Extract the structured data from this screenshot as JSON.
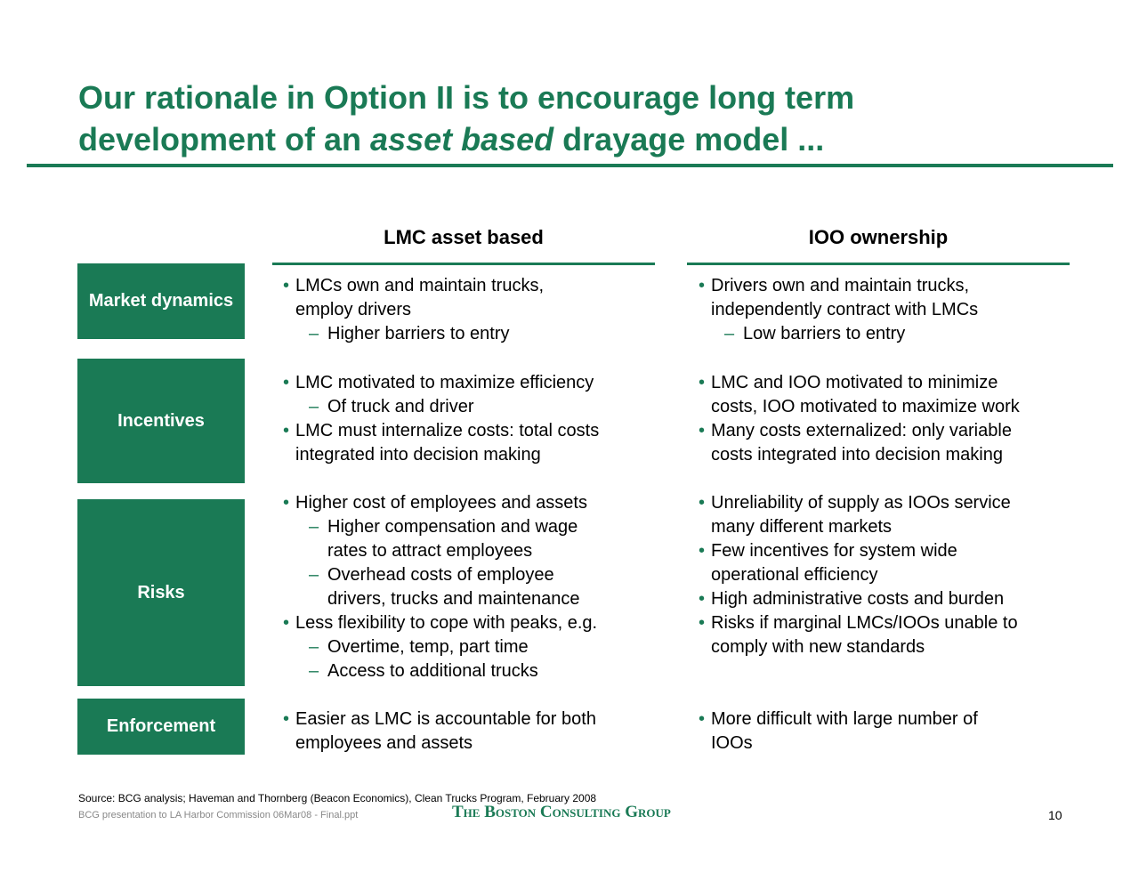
{
  "header": {
    "title": {
      "before": "Our rationale in Option II is to encourage long term development of an ",
      "emphasis": "asset based",
      "after": " drayage model ..."
    }
  },
  "columns": [
    "LMC asset based",
    "IOO ownership"
  ],
  "rows": [
    {
      "label": "Market dynamics",
      "cells": [
        [
          {
            "lines": [
              "LMCs own and maintain trucks,",
              "employ drivers"
            ],
            "subs": [
              {
                "lines": [
                  "Higher barriers to entry"
                ]
              }
            ]
          }
        ],
        [
          {
            "lines": [
              "Drivers own and maintain trucks,",
              "independently contract with LMCs"
            ],
            "subs": [
              {
                "lines": [
                  "Low barriers to entry"
                ]
              }
            ]
          }
        ]
      ]
    },
    {
      "label": "Incentives",
      "cells": [
        [
          {
            "lines": [
              "LMC motivated to maximize efficiency"
            ],
            "subs": [
              {
                "lines": [
                  "Of truck and driver"
                ]
              }
            ]
          },
          {
            "lines": [
              "LMC must internalize costs: total costs",
              "integrated into decision making"
            ]
          }
        ],
        [
          {
            "lines": [
              "LMC and IOO motivated to minimize",
              "costs, IOO motivated to maximize work"
            ]
          },
          {
            "lines": [
              "Many costs externalized: only variable",
              "costs integrated into decision making"
            ]
          }
        ]
      ]
    },
    {
      "label": "Risks",
      "cells": [
        [
          {
            "lines": [
              "Higher cost of employees and assets"
            ],
            "subs": [
              {
                "lines": [
                  "Higher compensation and wage",
                  "rates to attract employees"
                ]
              },
              {
                "lines": [
                  "Overhead costs of employee",
                  "drivers, trucks and maintenance"
                ]
              }
            ]
          },
          {
            "lines": [
              "Less flexibility to cope with peaks, e.g."
            ],
            "subs": [
              {
                "lines": [
                  "Overtime, temp, part time"
                ]
              },
              {
                "lines": [
                  "Access to additional trucks"
                ]
              }
            ]
          }
        ],
        [
          {
            "lines": [
              "Unreliability of supply as IOOs service",
              "many different markets"
            ]
          },
          {
            "lines": [
              "Few incentives for system wide",
              "operational efficiency"
            ]
          },
          {
            "lines": [
              "High administrative costs and burden"
            ]
          },
          {
            "lines": [
              "Risks if marginal LMCs/IOOs unable to",
              "comply with new standards"
            ]
          }
        ]
      ]
    },
    {
      "label": "Enforcement",
      "cells": [
        [
          {
            "lines": [
              "Easier as LMC is accountable for both",
              "employees and assets"
            ]
          }
        ],
        [
          {
            "lines": [
              "More difficult with large number of",
              "IOOs"
            ]
          }
        ]
      ]
    }
  ],
  "footer": {
    "source": "Source: BCG analysis; Haveman and Thornberg (Beacon Economics), Clean Trucks Program, February 2008",
    "file": "BCG presentation to LA Harbor Commission 06Mar08 - Final.ppt",
    "logo": "The Boston Consulting Group",
    "page": "10"
  }
}
